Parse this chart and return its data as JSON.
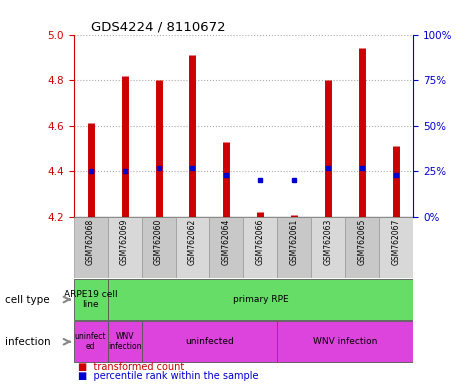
{
  "title": "GDS4224 / 8110672",
  "samples": [
    "GSM762068",
    "GSM762069",
    "GSM762060",
    "GSM762062",
    "GSM762064",
    "GSM762066",
    "GSM762061",
    "GSM762063",
    "GSM762065",
    "GSM762067"
  ],
  "transformed_counts": [
    4.61,
    4.82,
    4.8,
    4.91,
    4.53,
    4.22,
    4.21,
    4.8,
    4.94,
    4.51
  ],
  "percentile_ranks": [
    25,
    25,
    27,
    27,
    23,
    20,
    20,
    27,
    27,
    23
  ],
  "ylim_left": [
    4.2,
    5.0
  ],
  "ylim_right": [
    0,
    100
  ],
  "yticks_left": [
    4.2,
    4.4,
    4.6,
    4.8,
    5.0
  ],
  "yticks_right": [
    0,
    25,
    50,
    75,
    100
  ],
  "bar_color": "#cc0000",
  "dot_color": "#0000cc",
  "left_axis_color": "#cc0000",
  "right_axis_color": "#0000cc",
  "cell_groups": [
    {
      "label": "ARPE19 cell\nline",
      "start": 0,
      "end": 0
    },
    {
      "label": "primary RPE",
      "start": 1,
      "end": 9
    }
  ],
  "cell_color": "#66dd66",
  "inf_groups": [
    {
      "label": "uninfect\ned",
      "start": 0,
      "end": 0
    },
    {
      "label": "WNV\ninfection",
      "start": 1,
      "end": 1
    },
    {
      "label": "uninfected",
      "start": 2,
      "end": 5
    },
    {
      "label": "WNV infection",
      "start": 6,
      "end": 9
    }
  ],
  "inf_color": "#dd44dd",
  "sample_col_colors": [
    "#c8c8c8",
    "#d8d8d8"
  ]
}
